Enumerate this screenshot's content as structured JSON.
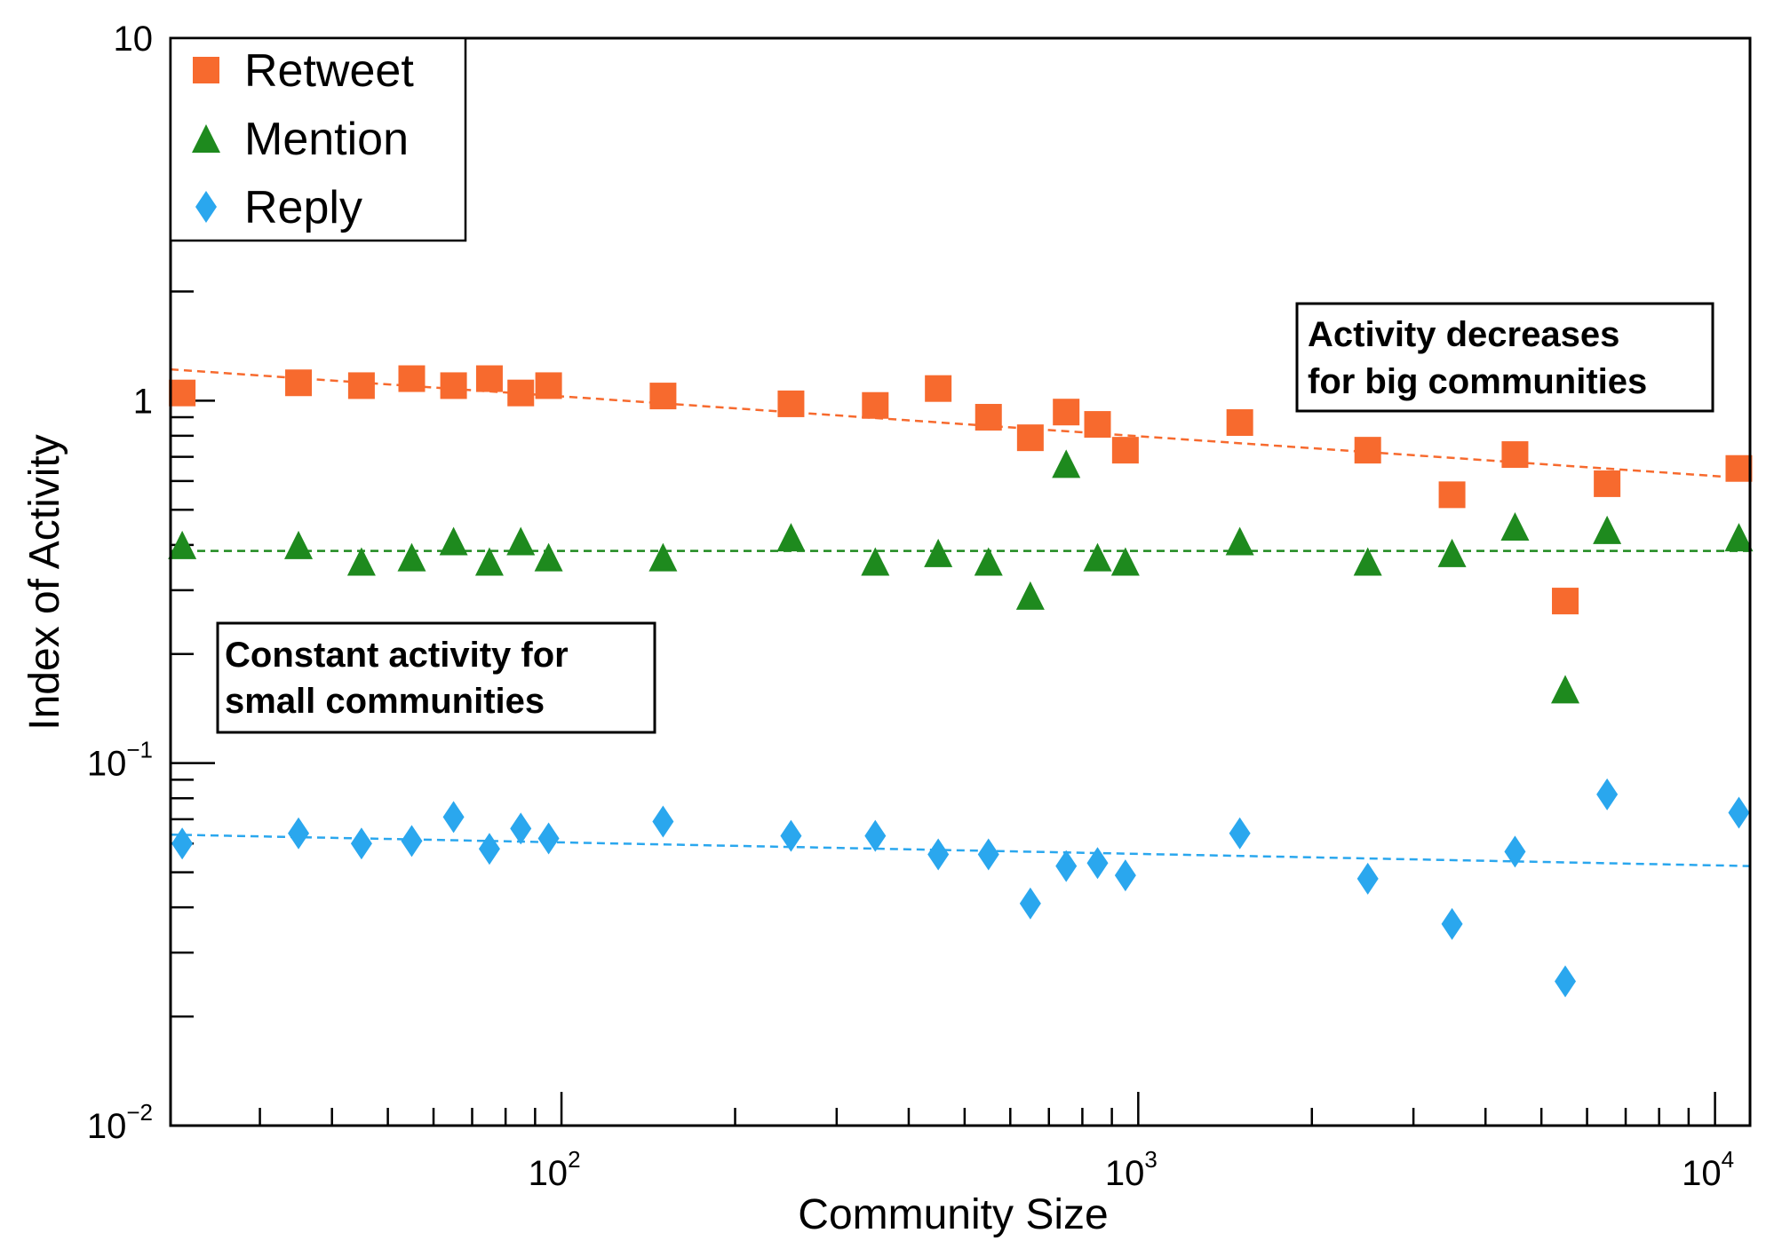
{
  "chart_data": {
    "type": "scatter",
    "xlabel": "Community Size",
    "ylabel": "Index of Activity",
    "xscale": "log",
    "yscale": "log",
    "xlim": [
      21,
      11500
    ],
    "ylim": [
      0.01,
      10
    ],
    "x_ticks": [
      {
        "base": "10",
        "exp": "2"
      },
      {
        "base": "10",
        "exp": "3"
      },
      {
        "base": "10",
        "exp": "4"
      }
    ],
    "y_ticks": [
      {
        "base": "10",
        "exp": "−2"
      },
      {
        "base": "10",
        "exp": "−1"
      },
      {
        "base": "1",
        "exp": ""
      },
      {
        "base": "10",
        "exp": ""
      }
    ],
    "legend": {
      "position": "top-left"
    },
    "series": [
      {
        "name": "Retweet",
        "color": "#f76a2e",
        "marker": "square",
        "x": [
          22,
          35,
          45,
          55,
          65,
          75,
          85,
          95,
          150,
          250,
          350,
          450,
          550,
          650,
          750,
          850,
          950,
          1500,
          2500,
          3500,
          4500,
          5500,
          6500,
          11000
        ],
        "y": [
          1.05,
          1.12,
          1.1,
          1.15,
          1.1,
          1.15,
          1.05,
          1.1,
          1.03,
          0.98,
          0.97,
          1.08,
          0.9,
          0.79,
          0.93,
          0.86,
          0.73,
          0.87,
          0.73,
          0.55,
          0.71,
          0.28,
          0.59,
          0.65
        ],
        "fit": {
          "x": [
            21,
            11500
          ],
          "y": [
            1.22,
            0.61
          ]
        }
      },
      {
        "name": "Mention",
        "color": "#1e8a1e",
        "marker": "triangle",
        "x": [
          22,
          35,
          45,
          55,
          65,
          75,
          85,
          95,
          150,
          250,
          350,
          450,
          550,
          650,
          750,
          850,
          950,
          1500,
          2500,
          3500,
          4500,
          5500,
          6500,
          11000
        ],
        "y": [
          0.4,
          0.4,
          0.36,
          0.37,
          0.41,
          0.36,
          0.41,
          0.37,
          0.37,
          0.42,
          0.36,
          0.38,
          0.36,
          0.29,
          0.67,
          0.37,
          0.36,
          0.41,
          0.36,
          0.38,
          0.45,
          0.16,
          0.44,
          0.42
        ],
        "fit": {
          "x": [
            21,
            11500
          ],
          "y": [
            0.385,
            0.385
          ]
        }
      },
      {
        "name": "Reply",
        "color": "#2aa7ee",
        "marker": "diamond",
        "x": [
          22,
          35,
          45,
          55,
          65,
          75,
          85,
          95,
          150,
          250,
          350,
          450,
          550,
          650,
          750,
          850,
          950,
          1500,
          2500,
          3500,
          4500,
          5500,
          6500,
          11000
        ],
        "y": [
          0.06,
          0.064,
          0.06,
          0.061,
          0.071,
          0.058,
          0.066,
          0.062,
          0.069,
          0.063,
          0.063,
          0.056,
          0.056,
          0.041,
          0.052,
          0.053,
          0.049,
          0.064,
          0.048,
          0.036,
          0.057,
          0.025,
          0.082,
          0.073
        ],
        "fit": {
          "x": [
            21,
            11500
          ],
          "y": [
            0.0635,
            0.052
          ]
        }
      }
    ],
    "annotations": [
      {
        "id": "big",
        "lines": [
          "Activity decreases",
          "for big communities"
        ]
      },
      {
        "id": "small",
        "lines": [
          "Constant activity for",
          "small communities"
        ]
      }
    ]
  }
}
